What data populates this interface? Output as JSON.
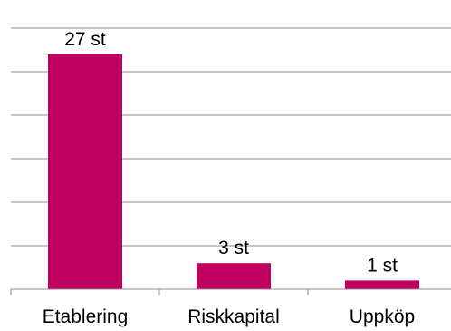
{
  "chart_data": {
    "type": "bar",
    "categories": [
      "Etablering",
      "Riskkapital",
      "Uppköp"
    ],
    "values": [
      27,
      3,
      1
    ],
    "data_labels": [
      "27 st",
      "3 st",
      "1 st"
    ],
    "ylim": [
      0,
      30
    ],
    "grid": true,
    "axis_labels_shown": false,
    "colors": {
      "bar": "#c0005f"
    }
  }
}
